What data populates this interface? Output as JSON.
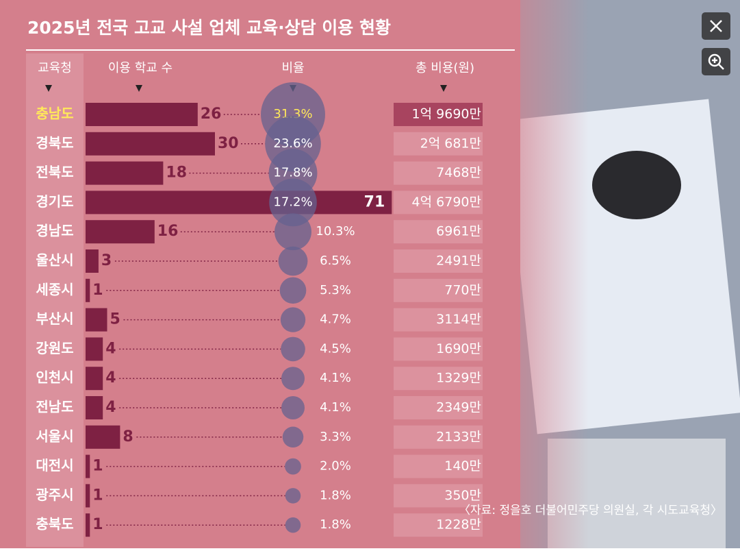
{
  "chart_data": {
    "type": "bar",
    "title": "2025년 전국 고교 사설 업체 교육·상담 이용 현황",
    "headers": [
      "교육청",
      "이용 학교 수",
      "비율",
      "총 비용(원)"
    ],
    "categories": [
      "충남도",
      "경북도",
      "전북도",
      "경기도",
      "경남도",
      "울산시",
      "세종시",
      "부산시",
      "강원도",
      "인천시",
      "전남도",
      "서울시",
      "대전시",
      "광주시",
      "충북도"
    ],
    "series": [
      {
        "name": "이용 학교 수",
        "color": "#7e2143",
        "values": [
          26,
          30,
          18,
          71,
          16,
          3,
          1,
          5,
          4,
          4,
          4,
          8,
          1,
          1,
          1
        ]
      },
      {
        "name": "비율",
        "color": "#65628f",
        "values": [
          31.3,
          23.6,
          17.8,
          17.2,
          10.3,
          6.5,
          5.3,
          4.7,
          4.5,
          4.1,
          4.1,
          3.3,
          2.0,
          1.8,
          1.8
        ],
        "value_labels": [
          "31.3%",
          "23.6%",
          "17.8%",
          "17.2%",
          "10.3%",
          "6.5%",
          "5.3%",
          "4.7%",
          "4.5%",
          "4.1%",
          "4.1%",
          "3.3%",
          "2.0%",
          "1.8%",
          "1.8%"
        ]
      }
    ],
    "costs": [
      "1억 9690만",
      "2억 681만",
      "7468만",
      "4억 6790만",
      "6961만",
      "2491만",
      "770만",
      "3114만",
      "1690만",
      "1329만",
      "2349만",
      "2133만",
      "140만",
      "350만",
      "1228만"
    ],
    "source": "〈자료: 정을호 더불어민주당 의원실, 각 시도교육청〉"
  }
}
